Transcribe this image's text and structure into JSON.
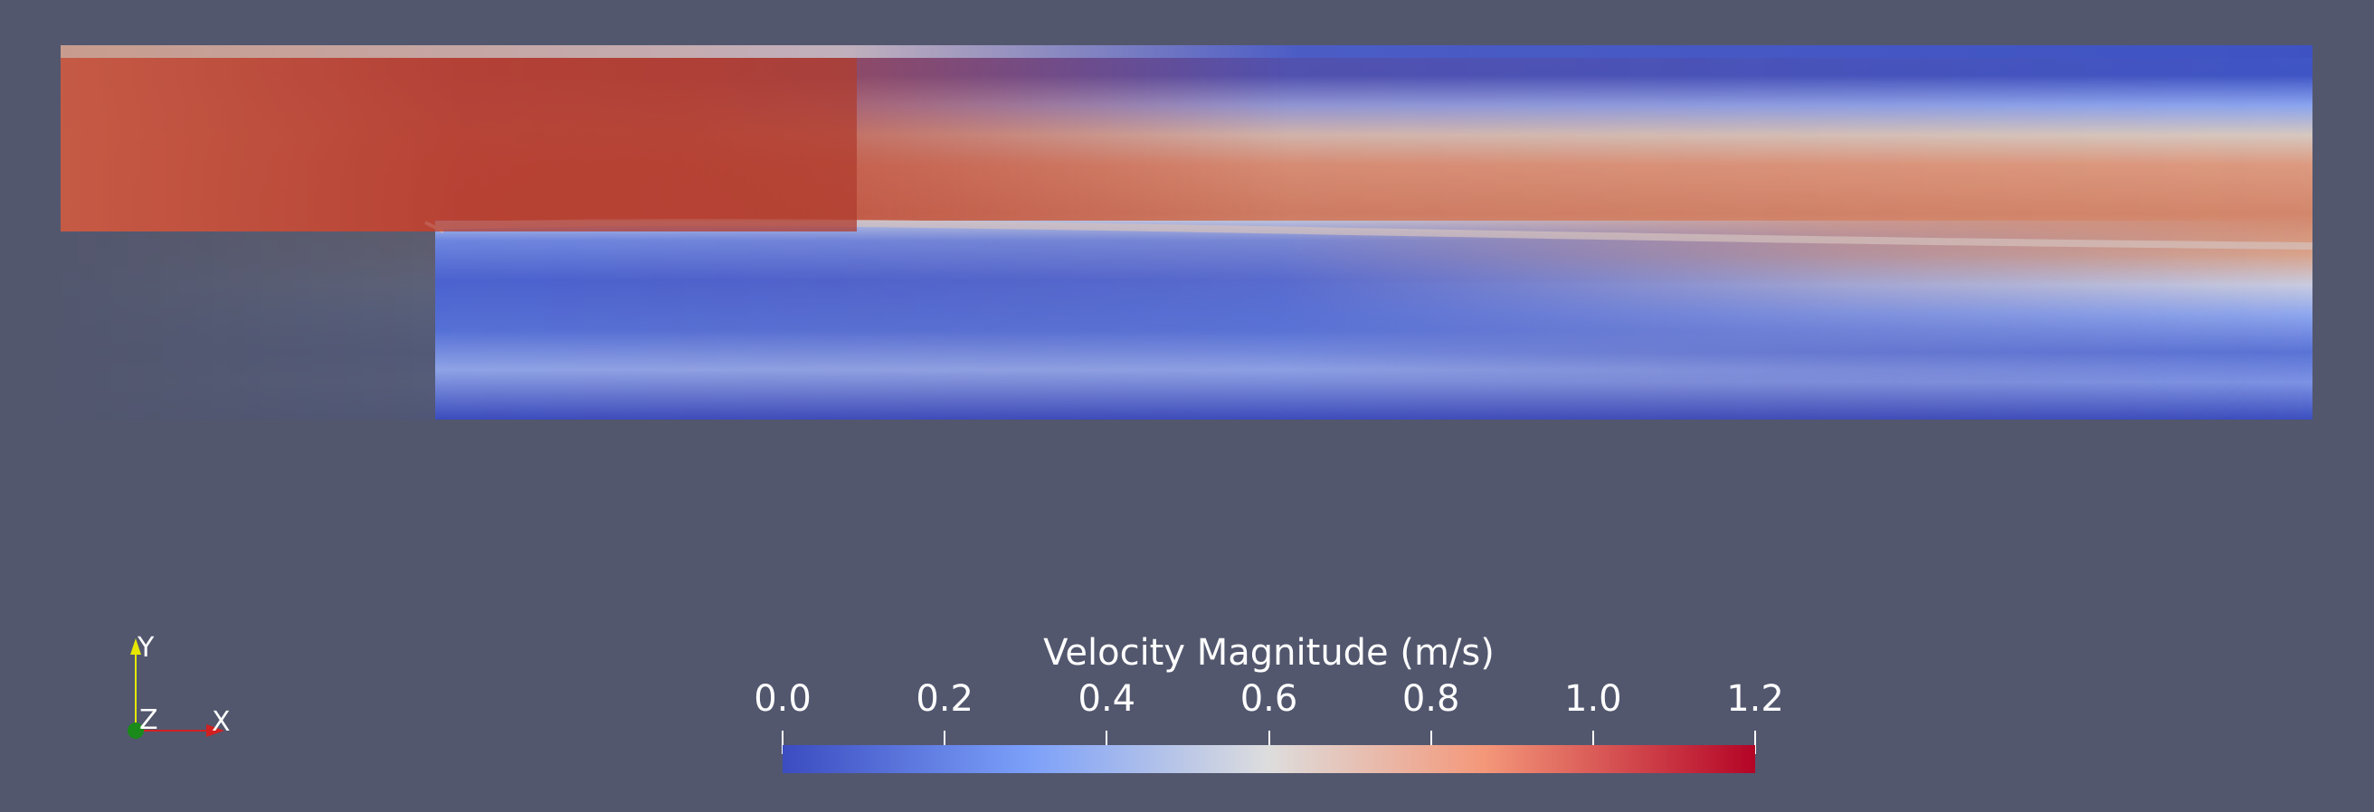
{
  "colorbar": {
    "title": "Velocity Magnitude (m/s)",
    "range": [
      0.0,
      1.2
    ],
    "ticks": [
      "0.0",
      "0.2",
      "0.4",
      "0.6",
      "0.8",
      "1.0",
      "1.2"
    ],
    "colors": {
      "low": "#3b4cc0",
      "mid": "#dddddd",
      "high": "#b40426"
    }
  },
  "orientation_axes": {
    "y_label": "Y",
    "z_label": "Z",
    "x_label": "X",
    "x_color": "#d22020",
    "y_color": "#e6e600",
    "z_color": "#1a8a1a"
  },
  "background": "#52576e",
  "field_shape": "backward-facing-step"
}
